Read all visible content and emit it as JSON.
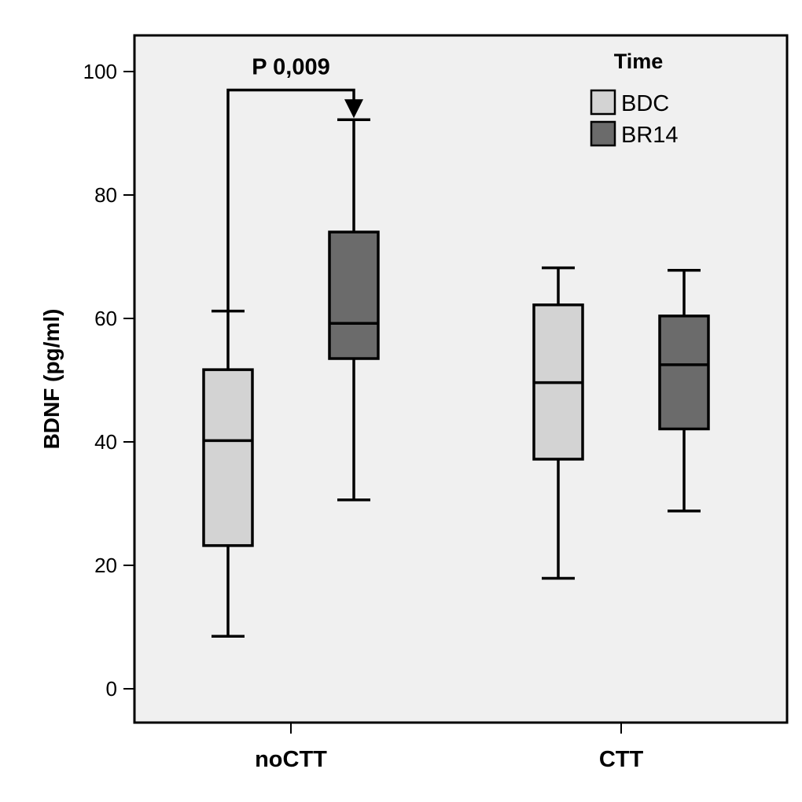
{
  "chart_data": {
    "type": "boxplot",
    "ylabel": "BDNF (pg/ml)",
    "ylim": [
      -5,
      105
    ],
    "yticks": [
      0,
      20,
      40,
      60,
      80,
      100
    ],
    "grid": false,
    "categories": [
      "noCTT",
      "CTT"
    ],
    "legend": {
      "title": "Time",
      "placement": "top-right",
      "entries": [
        "BDC",
        "BR14"
      ]
    },
    "series": [
      {
        "name": "BDC",
        "color": "#d3d3d3",
        "boxes": [
          {
            "category": "noCTT",
            "min": 8.5,
            "q1": 23.2,
            "median": 40.2,
            "q3": 51.7,
            "max": 61.2
          },
          {
            "category": "CTT",
            "min": 17.9,
            "q1": 37.2,
            "median": 49.6,
            "q3": 62.2,
            "max": 68.2
          }
        ]
      },
      {
        "name": "BR14",
        "color": "#6b6b6b",
        "boxes": [
          {
            "category": "noCTT",
            "min": 30.6,
            "q1": 53.5,
            "median": 59.2,
            "q3": 74.0,
            "max": 92.2
          },
          {
            "category": "CTT",
            "min": 28.8,
            "q1": 42.1,
            "median": 52.5,
            "q3": 60.4,
            "max": 67.8
          }
        ]
      }
    ],
    "annotations": [
      {
        "text": "P 0,009",
        "from": {
          "category": "noCTT",
          "series": "BDC"
        },
        "to": {
          "category": "noCTT",
          "series": "BR14"
        },
        "y": 97
      }
    ]
  }
}
